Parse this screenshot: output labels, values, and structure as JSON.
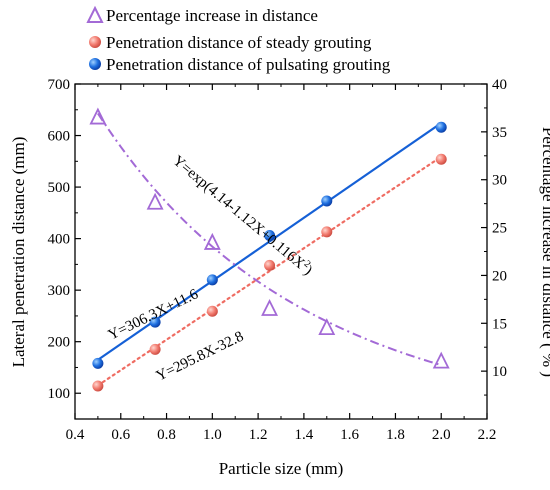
{
  "chart_data": {
    "type": "line",
    "x_axis": {
      "label": "Particle size (mm)",
      "range": [
        0.4,
        2.2
      ],
      "ticks": [
        "0.4",
        "0.6",
        "0.8",
        "1.0",
        "1.2",
        "1.4",
        "1.6",
        "1.8",
        "2.0",
        "2.2"
      ]
    },
    "y_axis_left": {
      "label": "Lateral penetration distance (mm)",
      "range": [
        50,
        700
      ],
      "ticks": [
        "100",
        "200",
        "300",
        "400",
        "500",
        "600",
        "700"
      ]
    },
    "y_axis_right": {
      "label": "Percentage increase in distance ( % )",
      "range": [
        5,
        40
      ],
      "ticks": [
        "10",
        "15",
        "20",
        "25",
        "30",
        "35",
        "40"
      ]
    },
    "legend": {
      "placement": "top",
      "entries": [
        "Percentage increase in distance",
        "Penetration distance of steady grouting",
        "Penetration distance of pulsating grouting"
      ]
    },
    "series": [
      {
        "name": "Penetration distance of pulsating grouting",
        "axis": "left",
        "marker": "circle",
        "color": "#1560d6",
        "x": [
          0.5,
          0.75,
          1.0,
          1.25,
          1.5,
          2.0
        ],
        "y": [
          158,
          238,
          320,
          406,
          473,
          616
        ]
      },
      {
        "name": "Penetration distance of steady grouting",
        "axis": "left",
        "marker": "circle",
        "color": "#ef6c62",
        "x": [
          0.5,
          0.75,
          1.0,
          1.25,
          1.5,
          2.0
        ],
        "y": [
          114,
          185,
          259,
          348,
          413,
          554
        ]
      },
      {
        "name": "Percentage increase in distance",
        "axis": "right",
        "marker": "triangle",
        "color": "#a36ad6",
        "x": [
          0.5,
          0.75,
          1.0,
          1.25,
          1.5,
          2.0
        ],
        "y": [
          36.6,
          27.7,
          23.5,
          16.6,
          14.6,
          11.1
        ]
      }
    ],
    "fit_lines": {
      "pulsating": {
        "a": 306.3,
        "b": 11.6,
        "x_range": [
          0.5,
          2.0
        ],
        "color": "#1560d6"
      },
      "steady": {
        "a": 295.8,
        "b": -32.8,
        "x_range": [
          0.5,
          2.0
        ],
        "color": "#ef6c62"
      },
      "percentage": {
        "c0": 4.14,
        "c1": -1.12,
        "c2": 0.116,
        "x_range": [
          0.5,
          2.0
        ],
        "color": "#a36ad6"
      }
    },
    "annotations": {
      "eq_pulsating": "Y=306.3X+11.6",
      "eq_steady": "Y=295.8X-32.8",
      "eq_percentage_main": "Y=exp(4.14-1.12X+0.116X",
      "eq_percentage_sup": "2",
      "eq_percentage_close": ")"
    },
    "grid": false
  }
}
